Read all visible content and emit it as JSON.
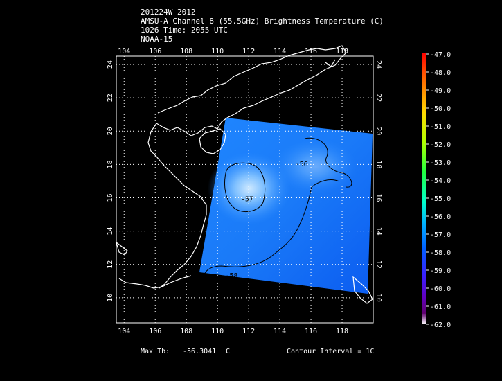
{
  "header": {
    "line1": "201224W 2012",
    "line2": "AMSU-A Channel 8 (55.5GHz) Brightness Temperature (C)",
    "line3": "1026 Time: 2055 UTC",
    "line4": "NOAA-15"
  },
  "map": {
    "lon_ticks": [
      "104",
      "106",
      "108",
      "110",
      "112",
      "114",
      "116",
      "118"
    ],
    "lat_ticks": [
      "10",
      "12",
      "14",
      "16",
      "18",
      "20",
      "22",
      "24"
    ],
    "lon_range": [
      103.5,
      120.0
    ],
    "lat_range": [
      8.5,
      24.5
    ],
    "contours": [
      {
        "label": "-56",
        "lon": 115.0,
        "lat": 17.9
      },
      {
        "label": "-57",
        "lon": 111.5,
        "lat": 15.8
      },
      {
        "label": "-58",
        "lon": 110.5,
        "lat": 11.2
      }
    ]
  },
  "colorbar": {
    "labels": [
      "-47.0",
      "-48.0",
      "-49.0",
      "-50.0",
      "-51.0",
      "-52.0",
      "-53.0",
      "-54.0",
      "-55.0",
      "-56.0",
      "-57.0",
      "-58.0",
      "-59.0",
      "-60.0",
      "-61.0",
      "-62.0"
    ],
    "colors": [
      "#ff0000",
      "#ff3000",
      "#ff6a00",
      "#ffa000",
      "#ffd000",
      "#e0ff00",
      "#a0ff00",
      "#40ff20",
      "#00ff80",
      "#00e8d0",
      "#00b0ff",
      "#0060ff",
      "#2030ff",
      "#5000e0",
      "#600090",
      "#700050"
    ]
  },
  "footer": {
    "max_label": "Max Tb:",
    "max_value": "-56.3041",
    "max_unit": "C",
    "contour_text": "Contour Interval = 1C"
  }
}
